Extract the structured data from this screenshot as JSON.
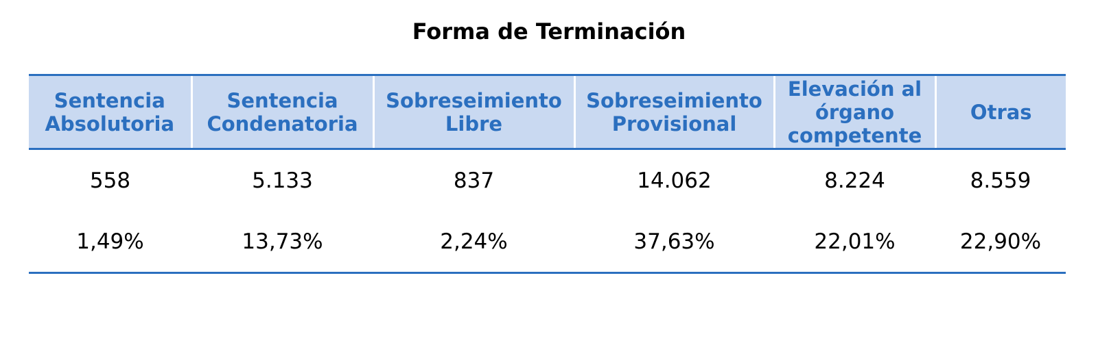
{
  "title": "Forma de Terminación",
  "table": {
    "headers": [
      "Sentencia Absolutoria",
      "Sentencia Condenatoria",
      "Sobreseimiento Libre",
      "Sobreseimiento Provisional",
      "Elevación al órgano competente",
      "Otras"
    ],
    "counts": [
      "558",
      "5.133",
      "837",
      "14.062",
      "8.224",
      "8.559"
    ],
    "percentages": [
      "1,49%",
      "13,73%",
      "2,24%",
      "37,63%",
      "22,01%",
      "22,90%"
    ]
  },
  "colors": {
    "header_bg": "#c9d9f1",
    "header_text": "#2b6fbf",
    "rule": "#2b6fbf"
  }
}
